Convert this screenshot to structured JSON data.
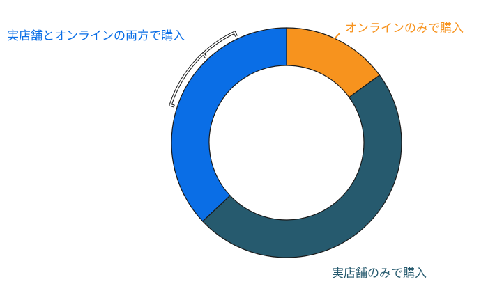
{
  "chart_data": {
    "type": "pie",
    "variant": "donut",
    "legend": "none",
    "labels": [
      "オンラインのみで購入",
      "実店舗のみで購入",
      "実店舗とオンラインの両方で購入"
    ],
    "values": [
      15,
      48,
      37
    ],
    "colors": [
      "#f7931e",
      "#265a6e",
      "#0a6ee6"
    ]
  }
}
